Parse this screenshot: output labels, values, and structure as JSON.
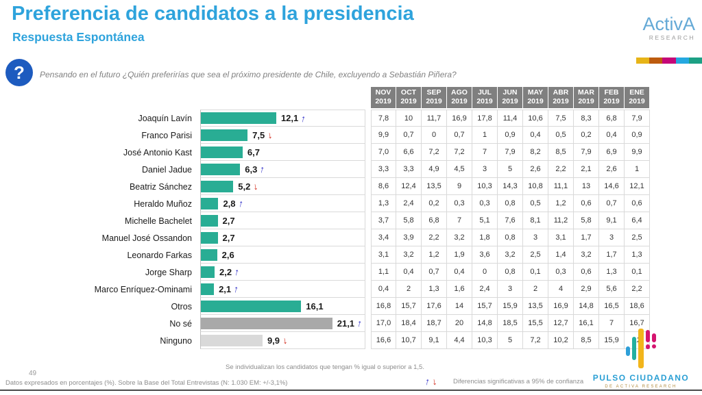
{
  "header": {
    "title": "Preferencia de candidatos a la presidencia",
    "subtitle": "Respuesta Espontánea",
    "question": "Pensando en el futuro ¿Quién preferirías que sea el próximo presidente de Chile, excluyendo a Sebastián Piñera?"
  },
  "icons": {
    "question_icon": "?"
  },
  "logos": {
    "activa_name": "ActivA",
    "activa_sub": "RESEARCH",
    "pulso_name": "PULSO CIUDADANO",
    "pulso_sub": "DE ACTIVA RESEARCH"
  },
  "chart_data": {
    "type": "bar",
    "orientation": "horizontal",
    "unit": "%",
    "title": "Preferencia de candidatos a la presidencia",
    "subtitle": "Respuesta Espontánea",
    "xlim": [
      0,
      26.3
    ],
    "grid": false,
    "trend_arrows": {
      "up": "↑",
      "down": "↓"
    },
    "bar_colors": {
      "teal": "#29AD94",
      "dark_gray": "#A9A9A9",
      "light_gray": "#D9D9D9"
    },
    "history_columns": [
      "NOV 2019",
      "OCT 2019",
      "SEP 2019",
      "AGO 2019",
      "JUL 2019",
      "JUN 2019",
      "MAY 2019",
      "ABR 2019",
      "MAR 2019",
      "FEB 2019",
      "ENE 2019"
    ],
    "rows": [
      {
        "label": "Joaquín Lavín",
        "value": 12.1,
        "display": "12,1",
        "trend": "up",
        "color": "teal",
        "history": [
          "7,8",
          "10",
          "11,7",
          "16,9",
          "17,8",
          "11,4",
          "10,6",
          "7,5",
          "8,3",
          "6,8",
          "7,9"
        ]
      },
      {
        "label": "Franco Parisi",
        "value": 7.5,
        "display": "7,5",
        "trend": "down",
        "color": "teal",
        "history": [
          "9,9",
          "0,7",
          "0",
          "0,7",
          "1",
          "0,9",
          "0,4",
          "0,5",
          "0,2",
          "0,4",
          "0,9"
        ]
      },
      {
        "label": "José Antonio Kast",
        "value": 6.7,
        "display": "6,7",
        "trend": null,
        "color": "teal",
        "history": [
          "7,0",
          "6,6",
          "7,2",
          "7,2",
          "7",
          "7,9",
          "8,2",
          "8,5",
          "7,9",
          "6,9",
          "9,9"
        ]
      },
      {
        "label": "Daniel Jadue",
        "value": 6.3,
        "display": "6,3",
        "trend": "up",
        "color": "teal",
        "history": [
          "3,3",
          "3,3",
          "4,9",
          "4,5",
          "3",
          "5",
          "2,6",
          "2,2",
          "2,1",
          "2,6",
          "1"
        ]
      },
      {
        "label": "Beatriz Sánchez",
        "value": 5.2,
        "display": "5,2",
        "trend": "down",
        "color": "teal",
        "history": [
          "8,6",
          "12,4",
          "13,5",
          "9",
          "10,3",
          "14,3",
          "10,8",
          "11,1",
          "13",
          "14,6",
          "12,1"
        ]
      },
      {
        "label": "Heraldo Muñoz",
        "value": 2.8,
        "display": "2,8",
        "trend": "up",
        "color": "teal",
        "history": [
          "1,3",
          "2,4",
          "0,2",
          "0,3",
          "0,3",
          "0,8",
          "0,5",
          "1,2",
          "0,6",
          "0,7",
          "0,6"
        ]
      },
      {
        "label": "Michelle Bachelet",
        "value": 2.7,
        "display": "2,7",
        "trend": null,
        "color": "teal",
        "history": [
          "3,7",
          "5,8",
          "6,8",
          "7",
          "5,1",
          "7,6",
          "8,1",
          "11,2",
          "5,8",
          "9,1",
          "6,4"
        ]
      },
      {
        "label": "Manuel José  Ossandon",
        "value": 2.7,
        "display": "2,7",
        "trend": null,
        "color": "teal",
        "history": [
          "3,4",
          "3,9",
          "2,2",
          "3,2",
          "1,8",
          "0,8",
          "3",
          "3,1",
          "1,7",
          "3",
          "2,5"
        ]
      },
      {
        "label": "Leonardo Farkas",
        "value": 2.6,
        "display": "2,6",
        "trend": null,
        "color": "teal",
        "history": [
          "3,1",
          "3,2",
          "1,2",
          "1,9",
          "3,6",
          "3,2",
          "2,5",
          "1,4",
          "3,2",
          "1,7",
          "1,3"
        ]
      },
      {
        "label": "Jorge Sharp",
        "value": 2.2,
        "display": "2,2",
        "trend": "up",
        "color": "teal",
        "history": [
          "1,1",
          "0,4",
          "0,7",
          "0,4",
          "0",
          "0,8",
          "0,1",
          "0,3",
          "0,6",
          "1,3",
          "0,1"
        ]
      },
      {
        "label": "Marco Enríquez-Ominami",
        "value": 2.1,
        "display": "2,1",
        "trend": "up",
        "color": "teal",
        "history": [
          "0,4",
          "2",
          "1,3",
          "1,6",
          "2,4",
          "3",
          "2",
          "4",
          "2,9",
          "5,6",
          "2,2"
        ]
      },
      {
        "label": "Otros",
        "value": 16.1,
        "display": "16,1",
        "trend": null,
        "color": "teal",
        "history": [
          "16,8",
          "15,7",
          "17,6",
          "14",
          "15,7",
          "15,9",
          "13,5",
          "16,9",
          "14,8",
          "16,5",
          "18,6"
        ]
      },
      {
        "label": "No sé",
        "value": 21.1,
        "display": "21,1",
        "trend": "up",
        "color": "dark_gray",
        "history": [
          "17,0",
          "18,4",
          "18,7",
          "20",
          "14,8",
          "18,5",
          "15,5",
          "12,7",
          "16,1",
          "7",
          "16,7"
        ]
      },
      {
        "label": "Ninguno",
        "value": 9.9,
        "display": "9,9",
        "trend": "down",
        "color": "light_gray",
        "history": [
          "16,6",
          "10,7",
          "9,1",
          "4,4",
          "10,3",
          "5",
          "7,2",
          "10,2",
          "8,5",
          "15,9",
          "12"
        ]
      }
    ]
  },
  "footnote": {
    "text": "Se individualizan los candidatos que tengan % igual o superior a 1,5."
  },
  "footer": {
    "page_number": "49",
    "note": "Datos expresados en porcentajes (%). Sobre la Base del Total Entrevistas (N: 1.030 EM: +/-3,1%)",
    "legend_text": "Diferencias  significativas a 95% de confianza"
  },
  "colors": {
    "accent_blue": "#2EA3DC",
    "header_bg": "#7F7F7F",
    "bar_teal": "#29AD94",
    "bar_dark_gray": "#A9A9A9",
    "bar_light_gray": "#D9D9D9",
    "arrow_up": "#3535C9",
    "arrow_down": "#D02718",
    "question_icon_bg": "#1D5BBF",
    "strip": [
      "#E7B418",
      "#BD5B0E",
      "#C50778",
      "#25A8E0",
      "#1CA084"
    ]
  }
}
